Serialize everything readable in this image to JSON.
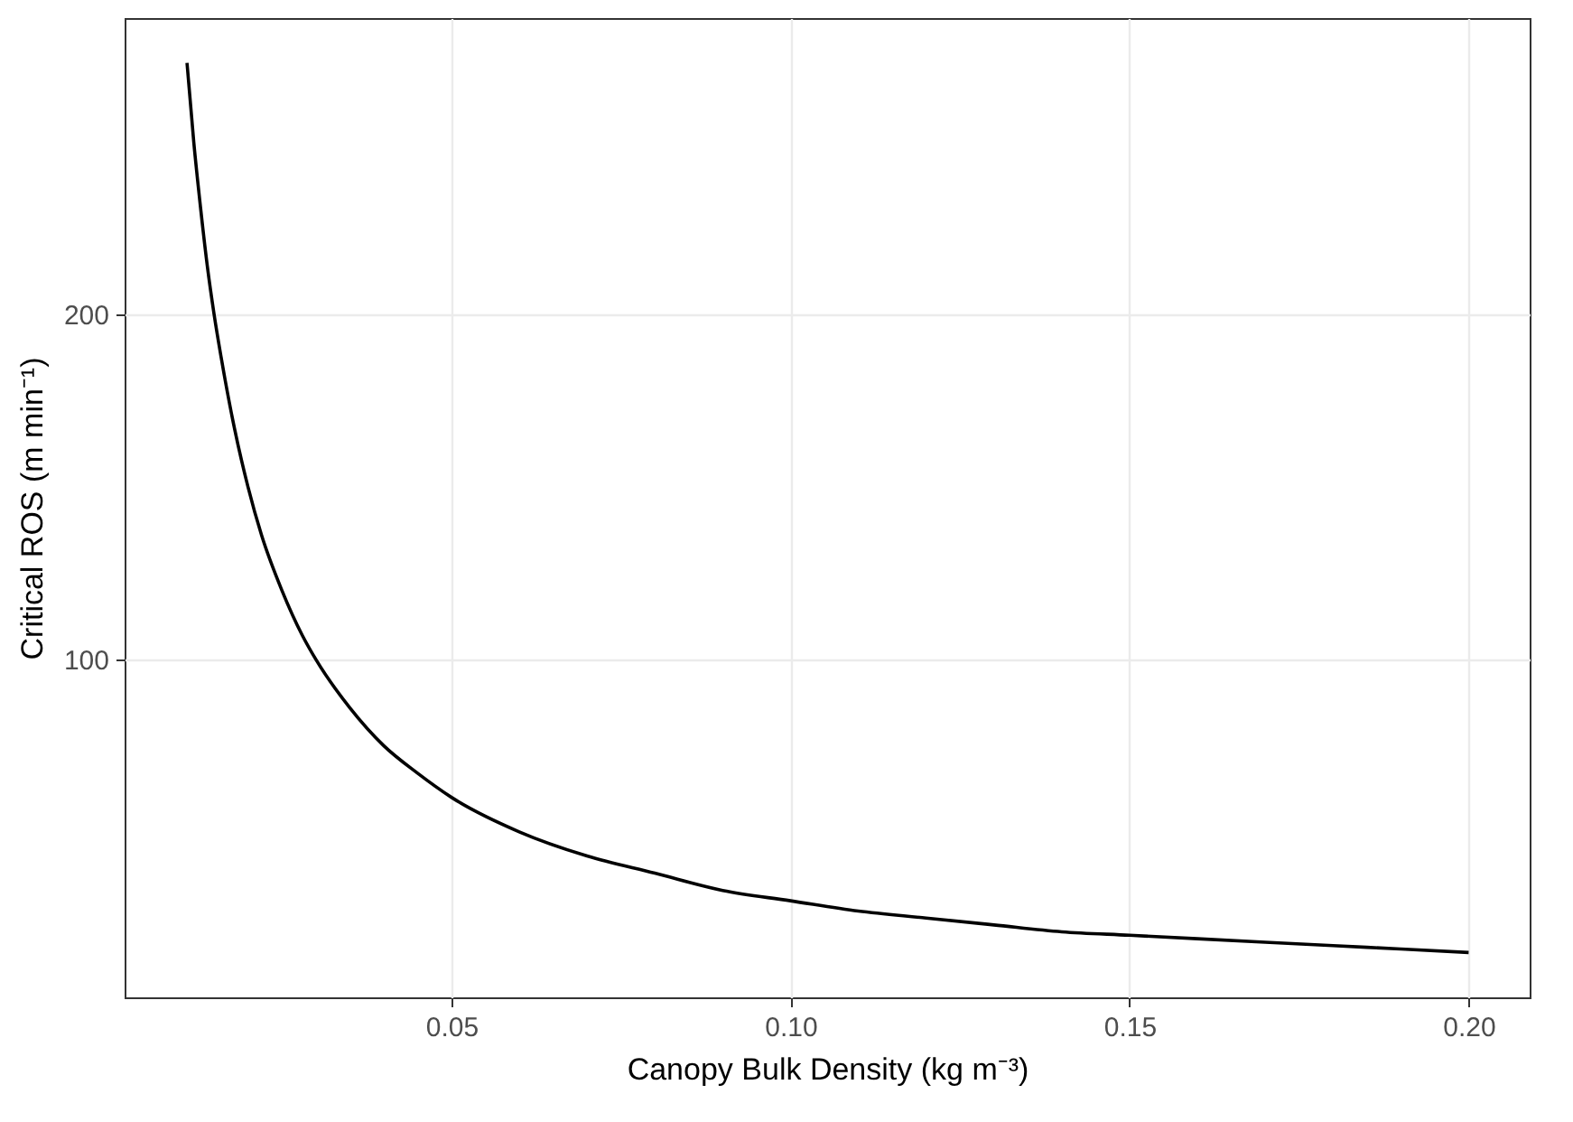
{
  "chart_data": {
    "type": "line",
    "xlabel": "Canopy Bulk Density (kg m⁻³)",
    "ylabel": "Critical ROS (m min⁻¹)",
    "x": [
      0.011,
      0.012,
      0.013,
      0.014,
      0.015,
      0.016,
      0.018,
      0.02,
      0.022,
      0.025,
      0.028,
      0.03,
      0.035,
      0.04,
      0.045,
      0.05,
      0.06,
      0.07,
      0.08,
      0.09,
      0.1,
      0.11,
      0.12,
      0.13,
      0.14,
      0.15,
      0.16,
      0.17,
      0.18,
      0.19,
      0.2
    ],
    "series": [
      {
        "color": "#000000",
        "values": [
          273,
          250,
          231,
          214,
          200,
          188,
          167,
          150,
          136,
          120,
          107,
          100,
          86,
          75,
          67,
          60,
          50,
          43,
          38,
          33,
          30,
          27,
          25,
          23,
          21,
          20,
          19,
          18,
          17,
          16,
          15
        ]
      }
    ],
    "xlim": [
      0.0018,
      0.209
    ],
    "xticks": [
      {
        "value": 0.05,
        "label": "0.05"
      },
      {
        "value": 0.1,
        "label": "0.10"
      },
      {
        "value": 0.15,
        "label": "0.15"
      },
      {
        "value": 0.2,
        "label": "0.20"
      }
    ],
    "ylim": [
      2,
      286
    ],
    "yticks": [
      100,
      200
    ],
    "grid": true,
    "marker": "none",
    "line_style": "solid"
  }
}
